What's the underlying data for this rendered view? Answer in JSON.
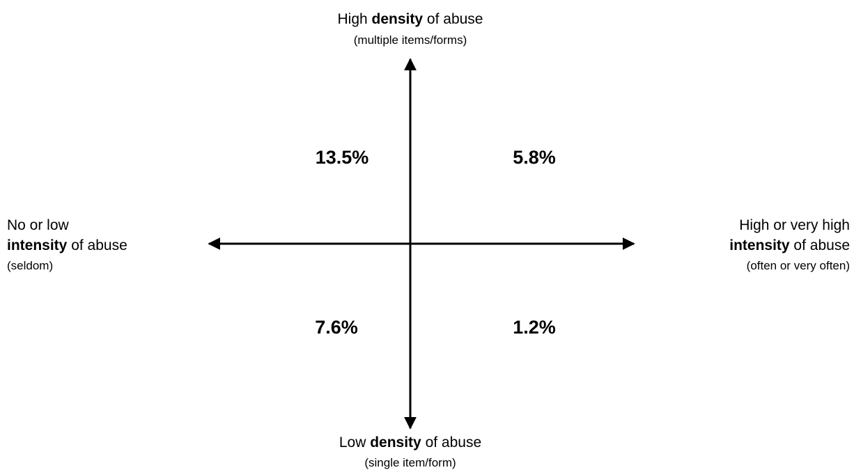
{
  "top": {
    "line1": [
      "High ",
      "density",
      " of abuse"
    ],
    "line2": "(multiple items/forms)"
  },
  "bottom": {
    "line1": [
      "Low ",
      "density",
      " of abuse"
    ],
    "line2": "(single item/form)"
  },
  "left": {
    "line1": "No or low",
    "line2": [
      "intensity",
      " of abuse"
    ],
    "line3": "(seldom)"
  },
  "right": {
    "line1": "High or very high",
    "line2": [
      "intensity",
      " of abuse"
    ],
    "line3": "(often or very often)"
  },
  "quadrants": {
    "top_left": "13.5%",
    "top_right": "5.8%",
    "bottom_left": "7.6%",
    "bottom_right": "1.2%"
  }
}
